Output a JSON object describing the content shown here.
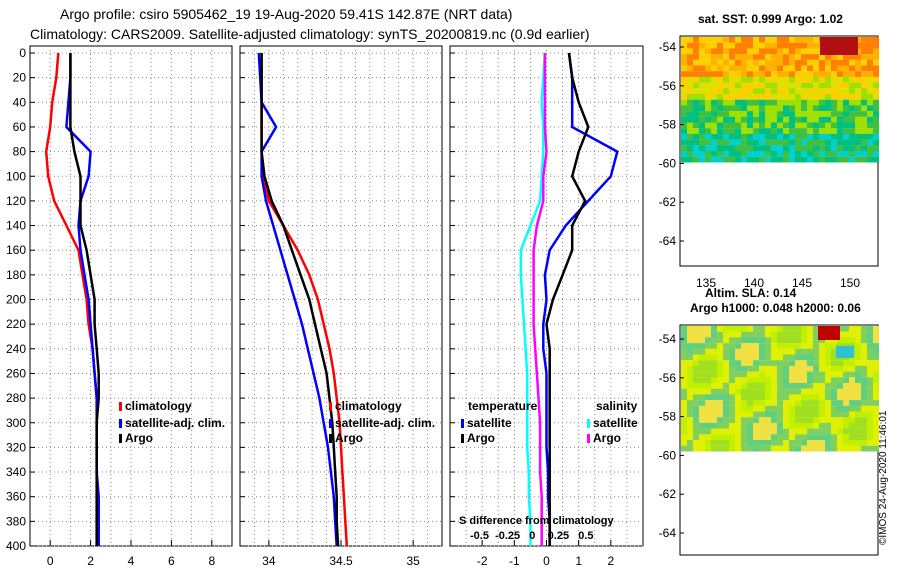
{
  "titles": {
    "line1": "Argo profile: csiro 5905462_19 19-Aug-2020 59.41S 142.87E (NRT data)",
    "line2": "Climatology: CARS2009. Satellite-adjusted climatology: synTS_20200819.nc (0.9d earlier)"
  },
  "maps": {
    "sst_title": "sat. SST: 0.999 Argo: 1.02",
    "sla_title1": "Altim. SLA: 0.14",
    "sla_title2": "Argo h1000: 0.048 h2000: 0.06",
    "lat_ticks": [
      "-54",
      "-56",
      "-58",
      "-60",
      "-62",
      "-64"
    ],
    "lon_ticks": [
      "135",
      "140",
      "145",
      "150"
    ]
  },
  "credit": "©IMOS 24-Aug-2020 11:46:01",
  "colors": {
    "climatology": "#ff0000",
    "satellite": "#0000ff",
    "argo": "#000000",
    "sal_sat": "#00ffff",
    "sal_argo": "#ff00ff"
  },
  "chart_data": [
    {
      "type": "line",
      "panel": "temperature",
      "xlabel": "",
      "ylabel": "depth",
      "xlim": [
        -1,
        9
      ],
      "ylim": [
        400,
        0
      ],
      "x_ticks": [
        "0",
        "2",
        "4",
        "6",
        "8"
      ],
      "y_ticks": [
        "0",
        "20",
        "40",
        "60",
        "80",
        "100",
        "120",
        "140",
        "160",
        "180",
        "200",
        "220",
        "240",
        "260",
        "280",
        "300",
        "320",
        "340",
        "360",
        "380",
        "400"
      ],
      "legend": [
        "climatology",
        "satellite-adj. clim.",
        "Argo"
      ],
      "depths": [
        0,
        20,
        40,
        60,
        80,
        100,
        120,
        140,
        160,
        180,
        200,
        220,
        240,
        260,
        280,
        300,
        320,
        340,
        360,
        380,
        400
      ],
      "series": [
        {
          "name": "climatology",
          "values": [
            0.4,
            0.3,
            0.1,
            0.0,
            -0.2,
            -0.1,
            0.2,
            0.8,
            1.4,
            1.6,
            1.8,
            1.9,
            2.1,
            2.2,
            2.3,
            2.3,
            2.3,
            2.3,
            2.3,
            2.3,
            2.3
          ]
        },
        {
          "name": "satellite-adj. clim.",
          "values": [
            1.0,
            1.0,
            0.9,
            0.8,
            2.0,
            1.9,
            1.5,
            1.4,
            1.5,
            1.7,
            1.9,
            2.0,
            2.1,
            2.2,
            2.3,
            2.3,
            2.3,
            2.3,
            2.4,
            2.4,
            2.4
          ]
        },
        {
          "name": "Argo",
          "values": [
            1.0,
            1.0,
            1.0,
            1.0,
            1.2,
            1.5,
            1.5,
            1.5,
            1.8,
            2.0,
            2.2,
            2.2,
            2.3,
            2.4,
            2.4,
            2.3,
            2.3,
            2.3,
            2.3,
            2.3,
            2.3
          ]
        }
      ]
    },
    {
      "type": "line",
      "panel": "salinity",
      "xlabel": "",
      "ylabel": "depth",
      "xlim": [
        33.8,
        35.2
      ],
      "ylim": [
        400,
        0
      ],
      "x_ticks": [
        "34",
        "34.5",
        "35"
      ],
      "legend": [
        "climatology",
        "satellite-adj. clim.",
        "Argo"
      ],
      "depths": [
        0,
        20,
        40,
        60,
        80,
        100,
        120,
        140,
        160,
        180,
        200,
        220,
        240,
        260,
        280,
        300,
        320,
        340,
        360,
        380,
        400
      ],
      "series": [
        {
          "name": "climatology",
          "values": [
            33.95,
            33.95,
            33.95,
            33.95,
            33.95,
            33.96,
            34.0,
            34.1,
            34.2,
            34.28,
            34.34,
            34.38,
            34.42,
            34.45,
            34.47,
            34.49,
            34.5,
            34.51,
            34.52,
            34.53,
            34.54
          ]
        },
        {
          "name": "satellite-adj. clim.",
          "values": [
            33.93,
            33.94,
            33.95,
            34.05,
            33.95,
            33.95,
            33.98,
            34.03,
            34.08,
            34.13,
            34.18,
            34.23,
            34.27,
            34.31,
            34.35,
            34.38,
            34.41,
            34.43,
            34.45,
            34.46,
            34.47
          ]
        },
        {
          "name": "Argo",
          "values": [
            33.95,
            33.95,
            33.95,
            33.95,
            33.95,
            33.97,
            34.02,
            34.1,
            34.16,
            34.22,
            34.28,
            34.32,
            34.36,
            34.4,
            34.42,
            34.44,
            34.45,
            34.46,
            34.47,
            34.47,
            34.48
          ]
        }
      ]
    },
    {
      "type": "line",
      "panel": "difference",
      "xlabel": "S difference from climatology",
      "ylabel": "depth",
      "xlim": [
        -3,
        3
      ],
      "ylim": [
        400,
        0
      ],
      "x_ticks": [
        "-2",
        "-1",
        "0",
        "1",
        "2"
      ],
      "top_ticks_label": "-0.5  -0.25   0    0.25   0.5",
      "legend_temperature": [
        "temperature",
        "satellite",
        "Argo"
      ],
      "legend_salinity": [
        "salinity",
        "satellite",
        "Argo"
      ],
      "depths": [
        0,
        20,
        40,
        60,
        80,
        100,
        120,
        140,
        160,
        180,
        200,
        220,
        240,
        260,
        280,
        300,
        320,
        340,
        360,
        380,
        400
      ],
      "series": [
        {
          "name": "temperature satellite",
          "values": [
            0.7,
            0.8,
            0.8,
            0.8,
            2.2,
            2.0,
            1.3,
            0.6,
            0.1,
            -0.05,
            0.0,
            -0.1,
            -0.1,
            0.0,
            0.0,
            0.0,
            0.0,
            0.05,
            0.05,
            0.1,
            0.1
          ]
        },
        {
          "name": "temperature Argo",
          "values": [
            0.7,
            0.8,
            1.0,
            1.3,
            1.0,
            0.8,
            1.2,
            0.8,
            0.8,
            0.5,
            0.2,
            0.0,
            0.1,
            0.1,
            0.1,
            0.1,
            0.1,
            0.1,
            0.1,
            0.1,
            0.1
          ]
        },
        {
          "name": "salinity satellite",
          "values": [
            -0.05,
            -0.1,
            -0.15,
            -0.1,
            -0.1,
            -0.15,
            -0.2,
            -0.5,
            -0.8,
            -0.8,
            -0.75,
            -0.7,
            -0.65,
            -0.6,
            -0.6,
            -0.6,
            -0.6,
            -0.55,
            -0.55,
            -0.5,
            -0.5
          ]
        },
        {
          "name": "salinity Argo",
          "values": [
            -0.05,
            -0.05,
            -0.05,
            -0.05,
            0.0,
            -0.1,
            -0.1,
            -0.3,
            -0.4,
            -0.4,
            -0.4,
            -0.4,
            -0.35,
            -0.3,
            -0.25,
            -0.2,
            -0.2,
            -0.2,
            -0.15,
            -0.15,
            -0.15
          ]
        }
      ]
    }
  ]
}
